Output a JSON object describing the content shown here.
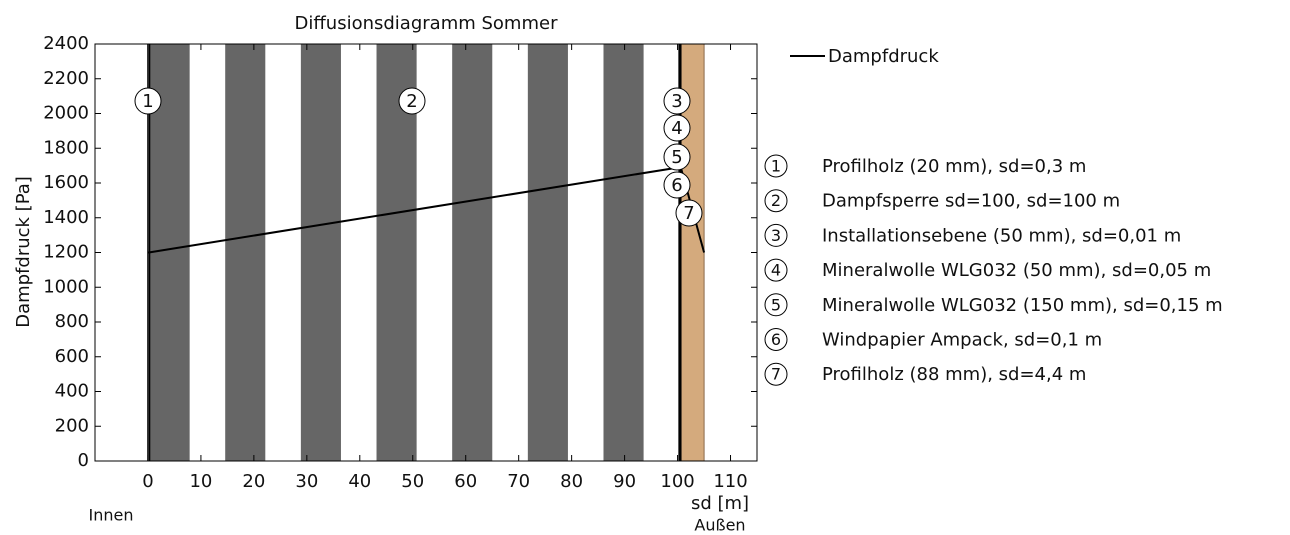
{
  "chart_data": {
    "type": "line",
    "title": "Diffusionsdiagramm Sommer",
    "xlabel": "sd [m]",
    "ylabel": "Dampfdruck [Pa]",
    "inner_label": "Innen",
    "outer_label": "Außen",
    "xlim": [
      -10,
      115
    ],
    "ylim": [
      0,
      2400
    ],
    "xticks": [
      0,
      10,
      20,
      30,
      40,
      50,
      60,
      70,
      80,
      90,
      100,
      110
    ],
    "yticks": [
      0,
      200,
      400,
      600,
      800,
      1000,
      1200,
      1400,
      1600,
      1800,
      2000,
      2200,
      2400
    ],
    "series": [
      {
        "name": "Dampfdruck",
        "color": "#000000",
        "x": [
          0,
          0.3,
          100.3,
          100.61,
          105.01
        ],
        "values": [
          1200,
          1201,
          1690,
          1690,
          1200
        ]
      }
    ],
    "layers": [
      {
        "number": 1,
        "name": "Profilholz (20 mm), sd=0,3 m",
        "start": 0,
        "end": 0.3,
        "color": "#ffffff"
      },
      {
        "number": 2,
        "name": "Dampfsperre sd=100, sd=100 m",
        "start": 0.3,
        "end": 100.3,
        "color": "#666666",
        "style": "stripes"
      },
      {
        "number": 3,
        "name": "Installationsebene (50 mm), sd=0,01 m",
        "start": 100.3,
        "end": 100.31,
        "color": "#ffffff"
      },
      {
        "number": 4,
        "name": "Mineralwolle WLG032 (50 mm), sd=0,05 m",
        "start": 100.31,
        "end": 100.36,
        "color": "#ffffff"
      },
      {
        "number": 5,
        "name": "Mineralwolle WLG032 (150 mm), sd=0,15 m",
        "start": 100.36,
        "end": 100.51,
        "color": "#ffffff"
      },
      {
        "number": 6,
        "name": "Windpapier Ampack, sd=0,1 m",
        "start": 100.51,
        "end": 100.61,
        "color": "#ffffff"
      },
      {
        "number": 7,
        "name": "Profilholz (88 mm), sd=4,4 m",
        "start": 100.61,
        "end": 105.01,
        "color": "#d4aa7d"
      }
    ]
  }
}
